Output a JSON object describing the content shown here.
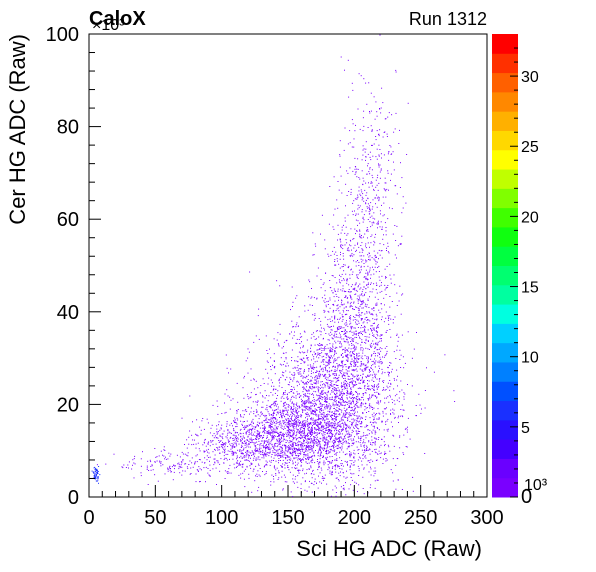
{
  "chart_data": {
    "type": "heatmap",
    "label_left": "CaloX",
    "label_right": "Run 1312",
    "xlabel": "Sci HG ADC (Raw)",
    "ylabel": "Cer HG ADC (Raw)",
    "xlim": [
      0,
      300
    ],
    "ylim": [
      0,
      100000
    ],
    "x_ticks": [
      "0",
      "50",
      "100",
      "150",
      "200",
      "250",
      "300"
    ],
    "y_ticks": [
      "0",
      "20",
      "40",
      "60",
      "80",
      "100"
    ],
    "y_multiplier": "×10³",
    "z_ticks": [
      "0",
      "5",
      "10",
      "15",
      "20",
      "25",
      "30"
    ],
    "z_multiplier": "10³",
    "zlim": [
      0,
      33
    ],
    "grid": false,
    "colorbar": "right",
    "palette": [
      "#7a00ff",
      "#6a00ff",
      "#4400ff",
      "#2a10ff",
      "#1a30ff",
      "#0050ff",
      "#0080ff",
      "#00a8ff",
      "#00d0ff",
      "#00ffe0",
      "#00ffa0",
      "#00ff70",
      "#00ff40",
      "#10ff10",
      "#40ff00",
      "#80ff00",
      "#c0ff00",
      "#ffff00",
      "#ffd800",
      "#ffb000",
      "#ff8800",
      "#ff6000",
      "#ff3000",
      "#ff0000"
    ],
    "clusters": [
      {
        "name": "",
        "x": 182,
        "y": 20000,
        "sx": 26,
        "sy": 9000,
        "n": 2600
      },
      {
        "name": "",
        "x": 150,
        "y": 13500,
        "sx": 22,
        "sy": 4000,
        "n": 1300
      },
      {
        "name": "",
        "x": 110,
        "y": 10500,
        "sx": 20,
        "sy": 3000,
        "n": 450
      },
      {
        "name": "",
        "x": 200,
        "y": 38000,
        "sx": 14,
        "sy": 12000,
        "n": 900
      },
      {
        "name": "",
        "x": 210,
        "y": 58000,
        "sx": 12,
        "sy": 12000,
        "n": 350
      },
      {
        "name": "",
        "x": 215,
        "y": 78000,
        "sx": 12,
        "sy": 8000,
        "n": 110
      },
      {
        "name": "",
        "x": 60,
        "y": 7000,
        "sx": 20,
        "sy": 1500,
        "n": 120
      },
      {
        "name": "",
        "x": 5,
        "y": 5000,
        "sx": 1,
        "sy": 800,
        "n": 60,
        "color": "#1a30ff"
      }
    ]
  }
}
